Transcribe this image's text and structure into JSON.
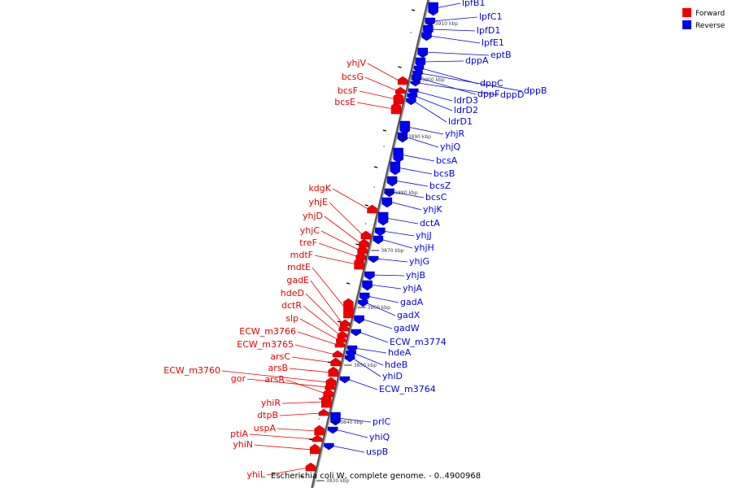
{
  "caption": "Escherichia coli W, complete genome. - 0..4900968",
  "legend": [
    {
      "label": "Forward",
      "color": "#ee0000"
    },
    {
      "label": "Reverse",
      "color": "#0000ee"
    }
  ],
  "colors": {
    "forward": "#ee0000",
    "reverse": "#0000ee",
    "backbone": "#888888",
    "ticks": "#000000"
  },
  "tick_labels": [
    "3840 kbp",
    "3850 kbp",
    "3860 kbp",
    "3870 kbp",
    "3880 kbp",
    "3890 kbp",
    "3900 kbp",
    "3910 kbp",
    "3830 kbp"
  ],
  "forward_genes": [
    "yhjV",
    "bcsG",
    "bcsF",
    "bcsE",
    "kdgK",
    "yhjE",
    "yhjD",
    "yhjC",
    "treF",
    "mdtF",
    "mdtE",
    "gadE",
    "hdeD",
    "dctR",
    "slp",
    "ECW_m3766",
    "ECW_m3765",
    "arsC",
    "arsB",
    "ECW_m3760",
    "gor",
    "arsR",
    "yhiR",
    "dtpB",
    "uspA",
    "ptiA",
    "yhiN",
    "yhiL"
  ],
  "reverse_genes": [
    "lpfB1",
    "lpfC1",
    "lpfD1",
    "lpfE1",
    "eptB",
    "dppA",
    "dppC",
    "dppB",
    "dppF",
    "dppD",
    "ldrD3",
    "ldrD2",
    "ldrD1",
    "yhjR",
    "yhjQ",
    "bcsA",
    "bcsB",
    "bcsZ",
    "bcsC",
    "yhjK",
    "dctA",
    "yhjJ",
    "yhjH",
    "yhjG",
    "yhjB",
    "yhjA",
    "gadA",
    "gadX",
    "gadW",
    "ECW_m3774",
    "hdeA",
    "hdeB",
    "yhiD",
    "ECW_m3764",
    "prlC",
    "yhiQ",
    "uspB"
  ]
}
